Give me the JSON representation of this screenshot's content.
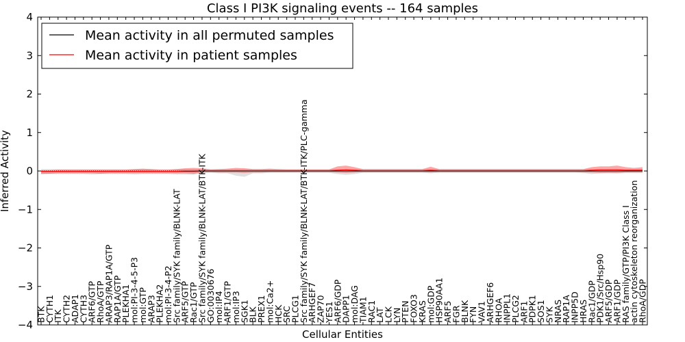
{
  "chart_data": {
    "type": "line",
    "title": "Class I PI3K signaling events -- 164 samples",
    "xlabel": "Cellular Entities",
    "ylabel": "Inferred Activity",
    "ylim": [
      -4,
      4
    ],
    "yticks": [
      -4,
      -3,
      -2,
      -1,
      0,
      1,
      2,
      3,
      4
    ],
    "ytick_labels": [
      "−4",
      "−3",
      "−2",
      "−1",
      "0",
      "1",
      "2",
      "3",
      "4"
    ],
    "legend_position": "top-left",
    "categories": [
      "BTK",
      "CYTH1",
      "ITK",
      "CYTH2",
      "ADAP1",
      "CYTH3",
      "ARF6/GTP",
      "RhoA/GTP",
      "ARAP3/RAP1A/GTP",
      "RAP1A/GTP",
      "PLEKHA1",
      "mol:PI-3-4-5-P3",
      "mol:GTP",
      "ARAP3",
      "PLEKHA2",
      "mol:PI-3-4-P2",
      "Src family/SYK family/BLNK-LAT",
      "ARF5/GTP",
      "Rac1/GTP",
      "Src family/SYK family/BLNK-LAT/BTK-ITK",
      "GO:0030676",
      "mol:IP4",
      "ARF1/GTP",
      "mol:IP3",
      "SGK1",
      "BLK",
      "PREX1",
      "mol:Ca2+",
      "HCK",
      "SRC",
      "PLCG1",
      "Src family/SYK family/BLNK-LAT/BTK-ITK/PLC-gamma",
      "ARHGEF7",
      "ZAP70",
      "YES1",
      "ARF6/GDP",
      "DAPP1",
      "mol:DAG",
      "TIAM1",
      "RAC1",
      "LAT",
      "LCK",
      "LYN",
      "PTEN",
      "FOXO3",
      "KRAS",
      "mol:GDP",
      "HSP90AA1",
      "ARF5",
      "FGR",
      "BLNK",
      "FYN",
      "VAV1",
      "ARHGEF6",
      "RHOA",
      "INPPL1",
      "PLCG2",
      "ARF1",
      "PDPK1",
      "SOS1",
      "SYK",
      "NRAS",
      "RAP1A",
      "INPP5D",
      "HRAS",
      "Rac1/GDP",
      "PDK1/Src/Hsp90",
      "ARF5/GDP",
      "ARF1/GDP",
      "RAS family/GTP/PI3K Class I",
      "actin cytoskeleton reorganization",
      "RhoA/GDP"
    ],
    "series": [
      {
        "name": "Mean activity in all permuted samples",
        "color": "#000000",
        "values": [
          -0.01,
          -0.01,
          -0.01,
          -0.01,
          -0.01,
          -0.01,
          -0.01,
          -0.01,
          -0.01,
          -0.01,
          -0.01,
          -0.01,
          -0.01,
          -0.01,
          -0.01,
          -0.01,
          -0.01,
          -0.01,
          -0.01,
          0.0,
          0.0,
          0.0,
          0.0,
          0.0,
          0.0,
          0.0,
          0.0,
          0.0,
          0.0,
          0.0,
          0.0,
          0.0,
          0.0,
          0.0,
          0.0,
          0.0,
          0.0,
          0.0,
          0.0,
          0.0,
          0.0,
          0.0,
          0.0,
          0.0,
          0.0,
          0.0,
          0.0,
          0.0,
          0.0,
          0.0,
          0.0,
          0.0,
          0.0,
          0.0,
          0.0,
          0.0,
          0.0,
          0.0,
          0.0,
          0.0,
          0.0,
          0.0,
          0.0,
          0.0,
          0.0,
          0.0,
          0.0,
          0.0,
          0.0,
          0.0,
          0.0,
          0.0
        ],
        "band_low": [
          -0.09,
          -0.08,
          -0.08,
          -0.08,
          -0.08,
          -0.08,
          -0.09,
          -0.08,
          -0.08,
          -0.08,
          -0.08,
          -0.09,
          -0.08,
          -0.08,
          -0.08,
          -0.08,
          -0.09,
          -0.09,
          -0.1,
          -0.05,
          -0.05,
          -0.06,
          -0.06,
          -0.12,
          -0.15,
          -0.06,
          -0.06,
          -0.05,
          -0.05,
          -0.05,
          -0.05,
          -0.05,
          -0.05,
          -0.05,
          -0.05,
          -0.08,
          -0.1,
          -0.08,
          -0.05,
          -0.05,
          -0.05,
          -0.05,
          -0.05,
          -0.05,
          -0.05,
          -0.05,
          -0.06,
          -0.05,
          -0.05,
          -0.05,
          -0.05,
          -0.05,
          -0.05,
          -0.05,
          -0.05,
          -0.05,
          -0.05,
          -0.05,
          -0.05,
          -0.05,
          -0.05,
          -0.05,
          -0.05,
          -0.05,
          -0.05,
          -0.08,
          -0.06,
          -0.05,
          -0.06,
          -0.05,
          -0.05,
          -0.05
        ],
        "band_high": [
          0.05,
          0.05,
          0.05,
          0.05,
          0.05,
          0.05,
          0.05,
          0.05,
          0.05,
          0.05,
          0.05,
          0.05,
          0.05,
          0.05,
          0.05,
          0.05,
          0.05,
          0.05,
          0.05,
          0.05,
          0.05,
          0.05,
          0.05,
          0.05,
          0.05,
          0.05,
          0.05,
          0.05,
          0.05,
          0.05,
          0.05,
          0.05,
          0.05,
          0.05,
          0.05,
          0.05,
          0.05,
          0.05,
          0.05,
          0.05,
          0.05,
          0.05,
          0.05,
          0.05,
          0.05,
          0.05,
          0.05,
          0.05,
          0.05,
          0.05,
          0.05,
          0.05,
          0.05,
          0.05,
          0.05,
          0.05,
          0.05,
          0.05,
          0.05,
          0.05,
          0.05,
          0.05,
          0.05,
          0.05,
          0.05,
          0.05,
          0.05,
          0.05,
          0.05,
          0.05,
          0.05,
          0.05
        ],
        "band_color": "#bbbbbb"
      },
      {
        "name": "Mean activity in patient samples",
        "color": "#ff0000",
        "values": [
          -0.01,
          -0.01,
          -0.01,
          -0.01,
          -0.01,
          -0.01,
          -0.01,
          -0.01,
          -0.01,
          -0.01,
          -0.01,
          -0.01,
          -0.01,
          -0.01,
          -0.01,
          -0.01,
          -0.01,
          0.0,
          0.0,
          0.01,
          0.01,
          0.01,
          0.01,
          0.01,
          0.01,
          0.01,
          0.01,
          0.01,
          0.01,
          0.01,
          0.01,
          0.01,
          0.01,
          0.01,
          0.01,
          0.02,
          0.03,
          0.02,
          0.01,
          0.01,
          0.01,
          0.01,
          0.01,
          0.01,
          0.01,
          0.01,
          0.02,
          0.01,
          0.01,
          0.01,
          0.01,
          0.01,
          0.01,
          0.01,
          0.01,
          0.01,
          0.01,
          0.01,
          0.01,
          0.01,
          0.01,
          0.01,
          0.01,
          0.01,
          0.01,
          0.02,
          0.03,
          0.03,
          0.03,
          0.02,
          0.02,
          0.02
        ],
        "band_low": [
          -0.07,
          -0.07,
          -0.06,
          -0.06,
          -0.06,
          -0.06,
          -0.06,
          -0.07,
          -0.06,
          -0.06,
          -0.06,
          -0.06,
          -0.06,
          -0.06,
          -0.06,
          -0.06,
          -0.06,
          -0.06,
          -0.07,
          -0.04,
          -0.03,
          -0.04,
          -0.04,
          -0.04,
          -0.05,
          -0.04,
          -0.04,
          -0.03,
          -0.03,
          -0.03,
          -0.03,
          -0.03,
          -0.03,
          -0.03,
          -0.03,
          -0.04,
          -0.05,
          -0.04,
          -0.03,
          -0.03,
          -0.03,
          -0.03,
          -0.03,
          -0.03,
          -0.03,
          -0.03,
          -0.04,
          -0.03,
          -0.03,
          -0.03,
          -0.03,
          -0.03,
          -0.03,
          -0.03,
          -0.03,
          -0.03,
          -0.03,
          -0.03,
          -0.03,
          -0.03,
          -0.03,
          -0.03,
          -0.03,
          -0.03,
          -0.04,
          -0.04,
          -0.05,
          -0.05,
          -0.05,
          -0.04,
          -0.04,
          -0.04
        ],
        "band_high": [
          0.02,
          0.02,
          0.03,
          0.03,
          0.03,
          0.03,
          0.03,
          0.03,
          0.03,
          0.03,
          0.03,
          0.05,
          0.06,
          0.05,
          0.03,
          0.03,
          0.05,
          0.07,
          0.08,
          0.07,
          0.04,
          0.05,
          0.06,
          0.08,
          0.07,
          0.05,
          0.05,
          0.06,
          0.05,
          0.04,
          0.04,
          0.04,
          0.04,
          0.04,
          0.04,
          0.12,
          0.14,
          0.1,
          0.05,
          0.05,
          0.05,
          0.05,
          0.05,
          0.05,
          0.05,
          0.05,
          0.11,
          0.05,
          0.05,
          0.05,
          0.05,
          0.05,
          0.05,
          0.05,
          0.05,
          0.05,
          0.05,
          0.05,
          0.05,
          0.05,
          0.05,
          0.05,
          0.05,
          0.05,
          0.05,
          0.1,
          0.12,
          0.12,
          0.14,
          0.1,
          0.08,
          0.1
        ],
        "band_color": "#ff0000"
      }
    ],
    "reference_line": 0
  }
}
